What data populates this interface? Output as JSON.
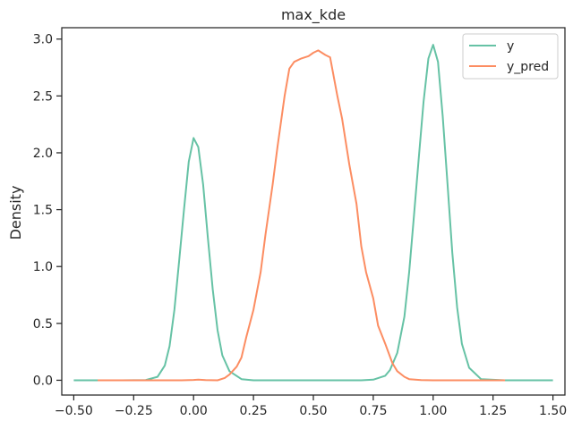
{
  "chart_data": {
    "type": "line",
    "title": "max_kde",
    "xlabel": "",
    "ylabel": "Density",
    "xlim": [
      -0.55,
      1.55
    ],
    "ylim": [
      -0.13,
      3.1
    ],
    "xticks": [
      -0.5,
      -0.25,
      0.0,
      0.25,
      0.5,
      0.75,
      1.0,
      1.25,
      1.5
    ],
    "xtick_labels": [
      "−0.50",
      "−0.25",
      "0.00",
      "0.25",
      "0.50",
      "0.75",
      "1.00",
      "1.25",
      "1.50"
    ],
    "yticks": [
      0.0,
      0.5,
      1.0,
      1.5,
      2.0,
      2.5,
      3.0
    ],
    "ytick_labels": [
      "0.0",
      "0.5",
      "1.0",
      "1.5",
      "2.0",
      "2.5",
      "3.0"
    ],
    "grid": false,
    "legend_position": "top-right",
    "series": [
      {
        "name": "y",
        "color": "#66c2a5",
        "x": [
          -0.5,
          -0.3,
          -0.2,
          -0.15,
          -0.12,
          -0.1,
          -0.08,
          -0.06,
          -0.04,
          -0.02,
          0.0,
          0.02,
          0.04,
          0.06,
          0.08,
          0.1,
          0.12,
          0.15,
          0.2,
          0.25,
          0.3,
          0.5,
          0.7,
          0.75,
          0.8,
          0.82,
          0.85,
          0.88,
          0.9,
          0.92,
          0.94,
          0.96,
          0.98,
          1.0,
          1.02,
          1.04,
          1.06,
          1.08,
          1.1,
          1.12,
          1.15,
          1.2,
          1.3,
          1.5
        ],
        "y": [
          0.0,
          0.0,
          0.002,
          0.03,
          0.13,
          0.3,
          0.62,
          1.05,
          1.5,
          1.92,
          2.13,
          2.05,
          1.72,
          1.25,
          0.8,
          0.44,
          0.22,
          0.08,
          0.01,
          0.0,
          0.0,
          0.0,
          0.0,
          0.005,
          0.04,
          0.09,
          0.24,
          0.56,
          0.95,
          1.45,
          1.96,
          2.45,
          2.83,
          2.95,
          2.8,
          2.32,
          1.72,
          1.12,
          0.64,
          0.32,
          0.11,
          0.01,
          0.0,
          0.0
        ]
      },
      {
        "name": "y_pred",
        "color": "#fc8d62",
        "x": [
          -0.4,
          -0.2,
          -0.05,
          0.0,
          0.02,
          0.05,
          0.1,
          0.13,
          0.15,
          0.18,
          0.2,
          0.22,
          0.25,
          0.28,
          0.3,
          0.33,
          0.35,
          0.38,
          0.4,
          0.42,
          0.45,
          0.48,
          0.5,
          0.52,
          0.55,
          0.57,
          0.6,
          0.62,
          0.65,
          0.68,
          0.7,
          0.72,
          0.75,
          0.77,
          0.8,
          0.83,
          0.85,
          0.88,
          0.9,
          0.95,
          1.0,
          1.3
        ],
        "y": [
          0.0,
          0.0,
          0.0,
          0.003,
          0.005,
          0.002,
          0.0,
          0.02,
          0.05,
          0.12,
          0.2,
          0.38,
          0.62,
          0.95,
          1.28,
          1.72,
          2.05,
          2.5,
          2.74,
          2.8,
          2.83,
          2.85,
          2.88,
          2.9,
          2.86,
          2.84,
          2.5,
          2.3,
          1.9,
          1.55,
          1.18,
          0.95,
          0.72,
          0.48,
          0.32,
          0.15,
          0.08,
          0.03,
          0.01,
          0.002,
          0.0,
          0.0
        ]
      }
    ]
  }
}
